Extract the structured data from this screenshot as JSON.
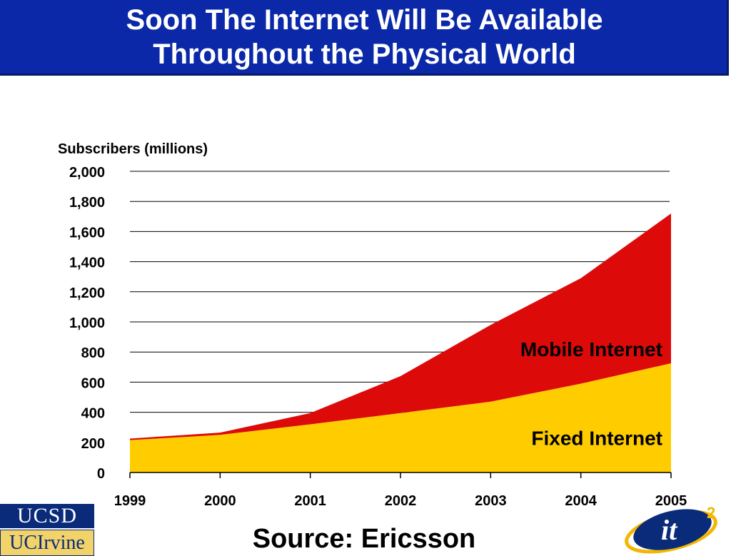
{
  "slide": {
    "title_line1": "Soon The Internet Will Be Available",
    "title_line2": "Throughout the Physical World",
    "source": "Source: Ericsson"
  },
  "logos": {
    "ucsd": "UCSD",
    "ucirvine": "UCIrvine",
    "it2_base": "it",
    "it2_sup": "2"
  },
  "colors": {
    "title_bg": "#0a28a8",
    "fixed": "#ffcc00",
    "mobile": "#dd0a0a"
  },
  "chart_data": {
    "type": "area",
    "stacked": true,
    "ylabel": "Subscribers (millions)",
    "xlabel": "",
    "x": [
      "1999",
      "2000",
      "2001",
      "2002",
      "2003",
      "2004",
      "2005"
    ],
    "ylim": [
      0,
      2000
    ],
    "yticks": [
      "0",
      "200",
      "400",
      "600",
      "800",
      "1,000",
      "1,200",
      "1,400",
      "1,600",
      "1,800",
      "2,000"
    ],
    "ytick_values": [
      0,
      200,
      400,
      600,
      800,
      1000,
      1200,
      1400,
      1600,
      1800,
      2000
    ],
    "grid": true,
    "series": [
      {
        "name": "Fixed Internet",
        "values": [
          215,
          250,
          320,
          395,
          470,
          590,
          725
        ],
        "color": "#ffcc00"
      },
      {
        "name": "Mobile Internet",
        "values": [
          10,
          15,
          75,
          245,
          510,
          700,
          995
        ],
        "color": "#dd0a0a"
      }
    ]
  }
}
